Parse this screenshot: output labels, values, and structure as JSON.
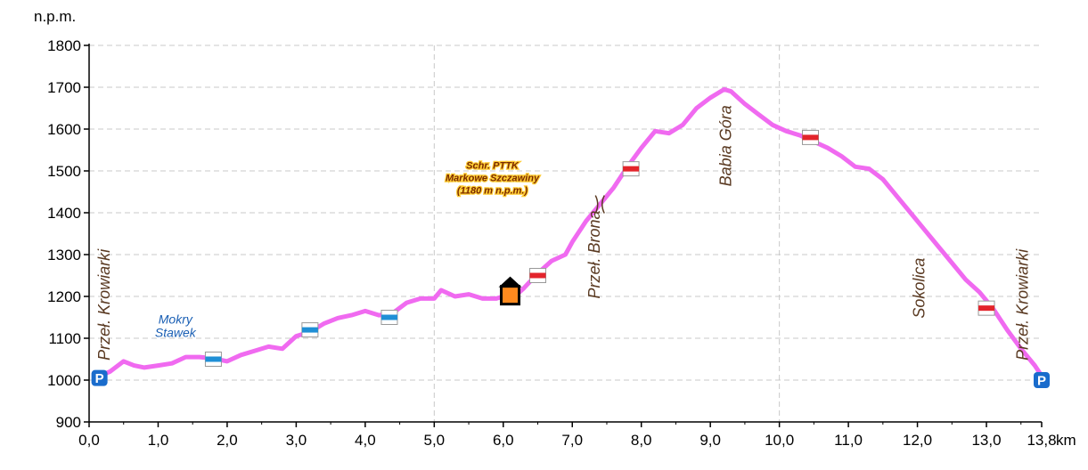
{
  "chart_data": {
    "type": "line",
    "ylabel": "n.p.m.",
    "x_unit": "km",
    "xlim": [
      0,
      13.8
    ],
    "ylim": [
      900,
      1800
    ],
    "x_ticks": [
      "0,0",
      "1,0",
      "2,0",
      "3,0",
      "4,0",
      "5,0",
      "6,0",
      "7,0",
      "8,0",
      "9,0",
      "10,0",
      "11,0",
      "12,0",
      "13,0",
      "13,8"
    ],
    "y_ticks": [
      "900",
      "1000",
      "1100",
      "1200",
      "1300",
      "1400",
      "1500",
      "1600",
      "1700",
      "1800"
    ],
    "grid": "dashed",
    "line_color": "#f06af0",
    "profile": {
      "x": [
        0.15,
        0.3,
        0.5,
        0.65,
        0.8,
        1.0,
        1.2,
        1.4,
        1.6,
        1.8,
        2.0,
        2.2,
        2.4,
        2.6,
        2.8,
        3.0,
        3.2,
        3.4,
        3.6,
        3.8,
        4.0,
        4.2,
        4.4,
        4.6,
        4.8,
        5.0,
        5.1,
        5.3,
        5.5,
        5.7,
        5.9,
        6.0,
        6.1,
        6.3,
        6.5,
        6.7,
        6.9,
        7.0,
        7.2,
        7.4,
        7.6,
        7.8,
        8.0,
        8.2,
        8.4,
        8.6,
        8.8,
        9.0,
        9.2,
        9.3,
        9.5,
        9.7,
        9.9,
        10.1,
        10.3,
        10.5,
        10.7,
        10.9,
        11.1,
        11.3,
        11.5,
        11.7,
        11.9,
        12.1,
        12.3,
        12.5,
        12.7,
        12.9,
        13.1,
        13.3,
        13.5,
        13.7,
        13.8
      ],
      "y": [
        1010,
        1020,
        1045,
        1035,
        1030,
        1035,
        1040,
        1055,
        1055,
        1052,
        1045,
        1060,
        1070,
        1080,
        1075,
        1105,
        1115,
        1135,
        1148,
        1155,
        1165,
        1155,
        1160,
        1185,
        1195,
        1195,
        1215,
        1200,
        1205,
        1195,
        1195,
        1200,
        1190,
        1220,
        1255,
        1285,
        1300,
        1330,
        1380,
        1420,
        1460,
        1510,
        1555,
        1595,
        1590,
        1610,
        1650,
        1675,
        1695,
        1690,
        1660,
        1635,
        1610,
        1595,
        1585,
        1570,
        1555,
        1535,
        1510,
        1505,
        1480,
        1440,
        1400,
        1360,
        1320,
        1280,
        1240,
        1210,
        1170,
        1120,
        1075,
        1035,
        1010
      ]
    },
    "places": [
      {
        "label": "Przeł. Krowiarki",
        "x": 0.3,
        "y": 1180
      },
      {
        "label": "Przeł. Brona",
        "x": 7.4,
        "y": 1300
      },
      {
        "label": "Babia Góra",
        "x": 9.3,
        "y": 1560
      },
      {
        "label": "Sokolica",
        "x": 12.1,
        "y": 1220
      },
      {
        "label": "Przeł. Krowiarki",
        "x": 13.6,
        "y": 1180
      }
    ],
    "lake": {
      "lines": [
        "Mokry",
        "Stawek"
      ],
      "x": 1.25,
      "y": 1135
    },
    "hut": {
      "lines": [
        "Schr. PTTK",
        "Markowe Szczawiny",
        "(1180 m n.p.m.)"
      ],
      "x": 6.1,
      "y": 1335
    },
    "hut_marker": {
      "x": 6.1,
      "y": 1205
    },
    "parking": [
      {
        "x": 0.15,
        "y": 1005
      },
      {
        "x": 13.8,
        "y": 1000
      }
    ],
    "blue_markers": [
      {
        "x": 1.8,
        "y": 1050
      },
      {
        "x": 3.2,
        "y": 1120
      },
      {
        "x": 4.35,
        "y": 1150
      }
    ],
    "red_markers": [
      {
        "x": 6.5,
        "y": 1250
      },
      {
        "x": 7.85,
        "y": 1505
      },
      {
        "x": 10.45,
        "y": 1580
      },
      {
        "x": 13.0,
        "y": 1172
      }
    ],
    "pass_marker": {
      "x": 7.4,
      "y": 1420
    },
    "colors": {
      "line": "#f06af0",
      "blue_trail": "#1f8fd6",
      "red_trail": "#e3242b",
      "parking": "#1a6ccc",
      "hut": "#ff8a1e"
    }
  }
}
